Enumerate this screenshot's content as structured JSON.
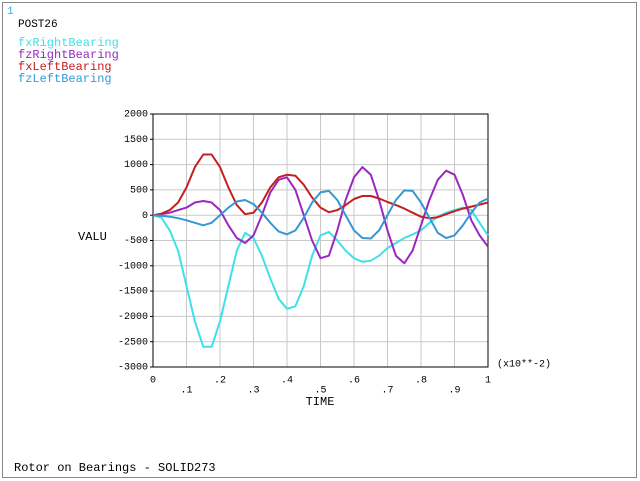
{
  "window_number": "1",
  "chart_data": {
    "type": "line",
    "title": "POST26",
    "footer": "Rotor on Bearings - SOLID273",
    "xlabel": "TIME",
    "ylabel": "VALU",
    "x_multiplier": "(x10**-2)",
    "grid": true,
    "xlim": [
      0,
      1
    ],
    "ylim": [
      -3000,
      2000
    ],
    "xticks": [
      0,
      {
        "value": 0.1,
        "label": ".1"
      },
      {
        "value": 0.2,
        "label": ".2"
      },
      {
        "value": 0.3,
        "label": ".3"
      },
      {
        "value": 0.4,
        "label": ".4"
      },
      {
        "value": 0.5,
        "label": ".5"
      },
      {
        "value": 0.6,
        "label": ".6"
      },
      {
        "value": 0.7,
        "label": ".7"
      },
      {
        "value": 0.8,
        "label": ".8"
      },
      {
        "value": 0.9,
        "label": ".9"
      },
      1
    ],
    "yticks": [
      -3000,
      -2500,
      -2000,
      -1500,
      -1000,
      -500,
      0,
      500,
      1000,
      1500,
      2000
    ],
    "x": [
      0,
      0.025,
      0.05,
      0.075,
      0.1,
      0.125,
      0.15,
      0.175,
      0.2,
      0.225,
      0.25,
      0.275,
      0.3,
      0.325,
      0.35,
      0.375,
      0.4,
      0.425,
      0.45,
      0.475,
      0.5,
      0.525,
      0.55,
      0.575,
      0.6,
      0.625,
      0.65,
      0.675,
      0.7,
      0.725,
      0.75,
      0.775,
      0.8,
      0.825,
      0.85,
      0.875,
      0.9,
      0.925,
      0.95,
      0.975,
      1
    ],
    "series": [
      {
        "name": "fxRightBearing",
        "color": "#40e0e8",
        "values": [
          0,
          -50,
          -300,
          -700,
          -1400,
          -2100,
          -2600,
          -2600,
          -2100,
          -1400,
          -700,
          -350,
          -450,
          -800,
          -1250,
          -1650,
          -1850,
          -1800,
          -1400,
          -800,
          -400,
          -330,
          -500,
          -700,
          -850,
          -920,
          -900,
          -800,
          -650,
          -550,
          -450,
          -380,
          -300,
          -150,
          -30,
          50,
          100,
          150,
          100,
          -150,
          -400
        ]
      },
      {
        "name": "fzRightBearing",
        "color": "#9a28c0",
        "values": [
          0,
          20,
          50,
          100,
          150,
          250,
          280,
          250,
          100,
          -200,
          -450,
          -550,
          -400,
          0,
          450,
          700,
          750,
          500,
          0,
          -500,
          -850,
          -800,
          -300,
          300,
          750,
          950,
          800,
          300,
          -300,
          -800,
          -950,
          -700,
          -200,
          300,
          700,
          880,
          800,
          400,
          -100,
          -400,
          -620
        ]
      },
      {
        "name": "fxLeftBearing",
        "color": "#c42020",
        "values": [
          0,
          30,
          100,
          250,
          550,
          950,
          1200,
          1200,
          950,
          550,
          200,
          20,
          50,
          250,
          550,
          750,
          800,
          780,
          600,
          350,
          150,
          60,
          100,
          200,
          320,
          380,
          380,
          330,
          260,
          200,
          130,
          50,
          -30,
          -60,
          -40,
          20,
          80,
          130,
          170,
          210,
          250
        ]
      },
      {
        "name": "fzLeftBearing",
        "color": "#3598d4",
        "values": [
          0,
          -10,
          -30,
          -60,
          -100,
          -150,
          -200,
          -150,
          0,
          150,
          270,
          300,
          220,
          50,
          -150,
          -320,
          -380,
          -300,
          -50,
          250,
          450,
          480,
          300,
          0,
          -300,
          -450,
          -460,
          -300,
          0,
          300,
          490,
          480,
          250,
          -50,
          -350,
          -450,
          -400,
          -200,
          50,
          250,
          330
        ]
      }
    ]
  }
}
